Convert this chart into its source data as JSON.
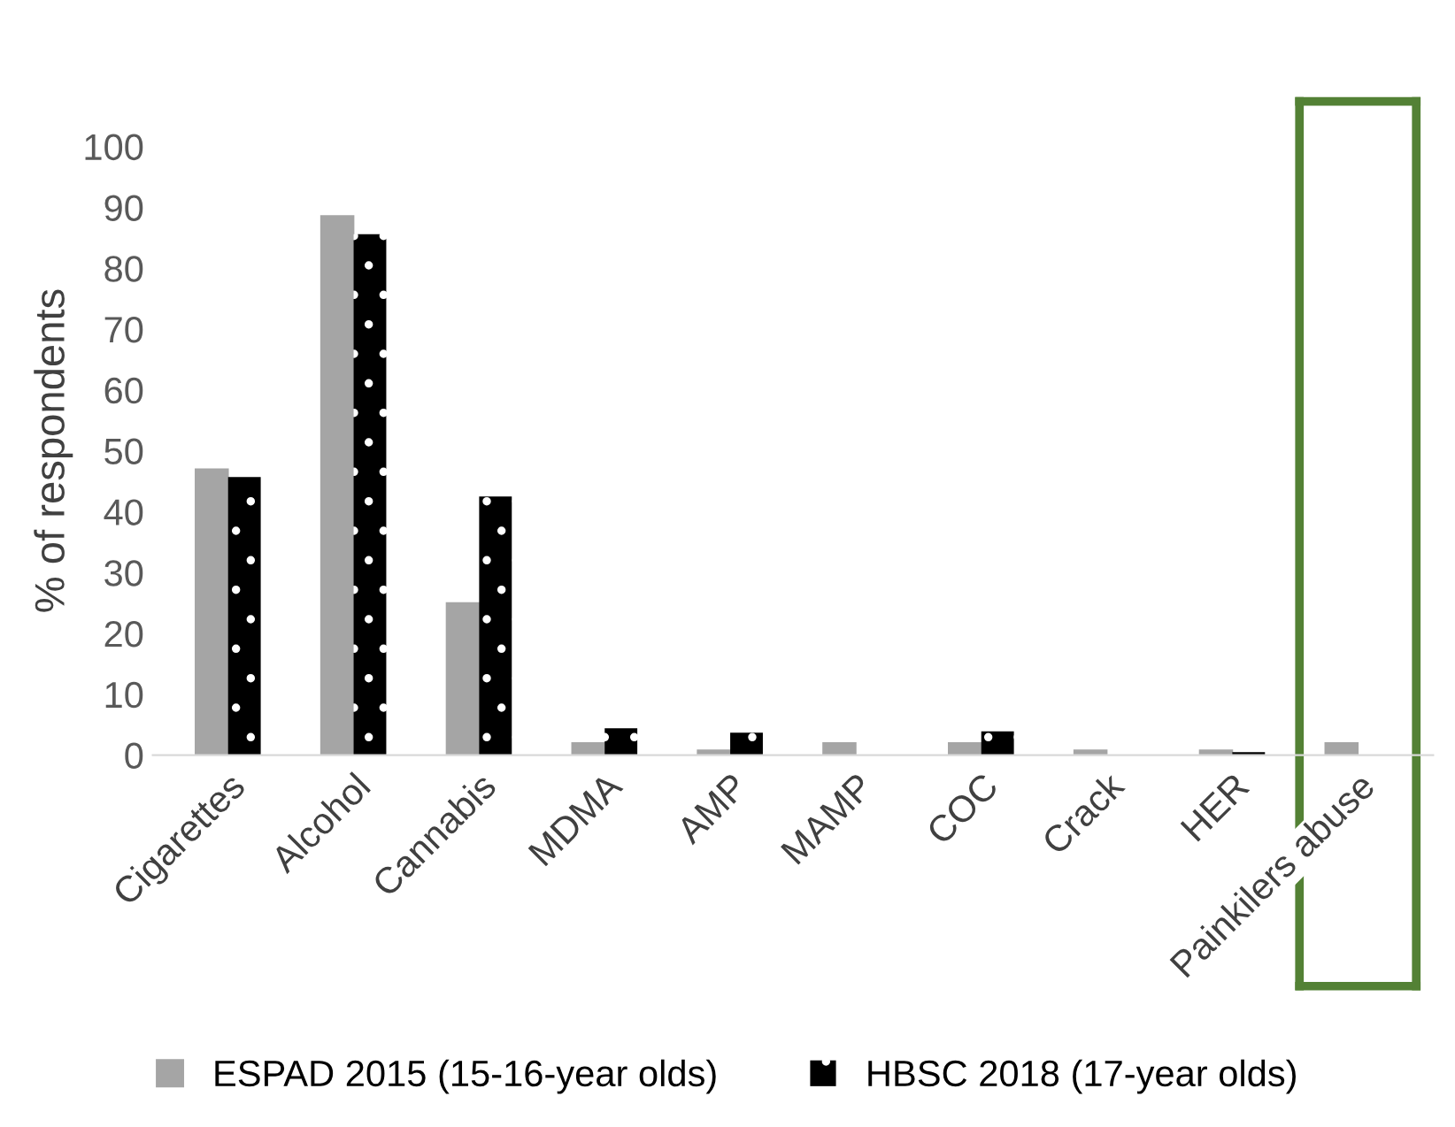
{
  "chart_data": {
    "type": "bar",
    "ylabel": "% of respondents",
    "categories": [
      "Cigarettes",
      "Alcohol",
      "Cannabis",
      "MDMA",
      "AMP",
      "MAMP",
      "COC",
      "Crack",
      "HER",
      "Painkilers abuse"
    ],
    "series": [
      {
        "name": "ESPAD 2015 (15-16-year olds)",
        "color": "#a5a5a5",
        "values": [
          47,
          88.6,
          25,
          2,
          0.8,
          2,
          2,
          0.8,
          0.8,
          2
        ]
      },
      {
        "name": "HBSC 2018 (17-year olds)",
        "color": "#000000",
        "values": [
          45.7,
          85.6,
          42.5,
          4.4,
          3.7,
          null,
          3.9,
          null,
          0.5,
          null
        ]
      }
    ],
    "ylim": [
      0,
      100
    ],
    "yticks": [
      0,
      10,
      20,
      30,
      40,
      50,
      60,
      70,
      80,
      90,
      100
    ],
    "grid": false,
    "legend": "bottom"
  }
}
